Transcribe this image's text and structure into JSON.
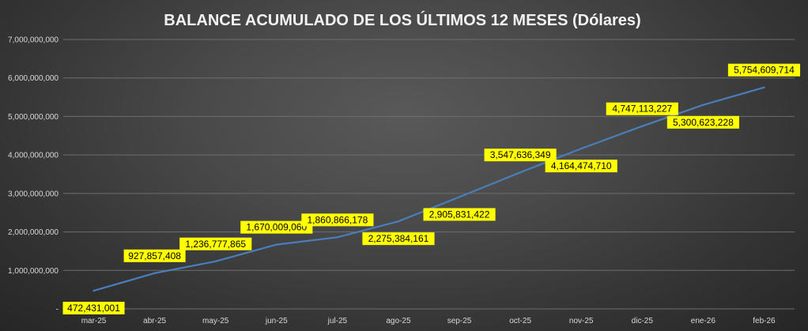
{
  "chart_data": {
    "type": "line",
    "title": "BALANCE ACUMULADO DE LOS ÚLTIMOS 12 MESES (Dólares)",
    "xlabel": "",
    "ylabel": "",
    "categories": [
      "mar-25",
      "abr-25",
      "may-25",
      "jun-25",
      "jul-25",
      "ago-25",
      "sep-25",
      "oct-25",
      "nov-25",
      "dic-25",
      "ene-26",
      "feb-26"
    ],
    "series": [
      {
        "values": [
          472431001,
          927857408,
          1236777865,
          1670009060,
          1860866178,
          2275384161,
          2905831422,
          3547636349,
          4164474710,
          4747113227,
          5300623228,
          5754609714
        ],
        "labels": [
          "472,431,001",
          "927,857,408",
          "1,236,777,865",
          "1,670,009,060",
          "1,860,866,178",
          "2,275,384,161",
          "2,905,831,422",
          "3,547,636,349",
          "4,164,474,710",
          "4,747,113,227",
          "5,300,623,228",
          "5,754,609,714"
        ]
      }
    ],
    "ylim": [
      0,
      7000000000
    ],
    "yticks": [
      0,
      1000000000,
      2000000000,
      3000000000,
      4000000000,
      5000000000,
      6000000000,
      7000000000
    ],
    "ytick_labels": [
      "-",
      "1,000,000,000",
      "2,000,000,000",
      "3,000,000,000",
      "4,000,000,000",
      "5,000,000,000",
      "6,000,000,000",
      "7,000,000,000"
    ],
    "grid": true,
    "legend": "none",
    "colors": {
      "line": "#4a7ebb",
      "label_bg": "#ffff00",
      "grid": "#6e6e6e",
      "text": "#d9d9d9",
      "title": "#f2f2f2"
    }
  }
}
